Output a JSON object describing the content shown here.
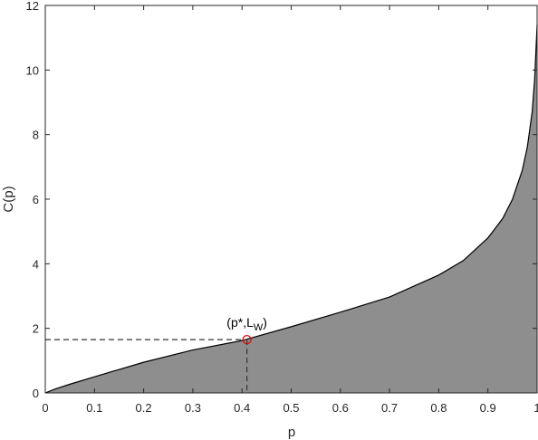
{
  "chart_data": {
    "type": "area",
    "xlabel": "p",
    "ylabel": "C(p)",
    "x": [
      0,
      0.02,
      0.05,
      0.1,
      0.2,
      0.3,
      0.4,
      0.5,
      0.6,
      0.7,
      0.8,
      0.85,
      0.9,
      0.93,
      0.95,
      0.97,
      0.98,
      0.99,
      0.995,
      1
    ],
    "values": [
      0,
      0.12,
      0.27,
      0.5,
      0.95,
      1.33,
      1.62,
      2.05,
      2.5,
      2.97,
      3.65,
      4.1,
      4.8,
      5.4,
      6.0,
      6.9,
      7.6,
      8.7,
      9.7,
      11.4
    ],
    "color": "#8e8e8e",
    "line_color": "#000000",
    "xlim": [
      0,
      1
    ],
    "ylim": [
      0,
      12
    ],
    "xticks": [
      0,
      0.1,
      0.2,
      0.3,
      0.4,
      0.5,
      0.6,
      0.7,
      0.8,
      0.9,
      1
    ],
    "yticks": [
      0,
      2,
      4,
      6,
      8,
      10,
      12
    ],
    "point": {
      "x": 0.41,
      "y": 1.65,
      "color": "#e00000",
      "label": [
        "(p*,L",
        "W",
        ")"
      ]
    }
  }
}
